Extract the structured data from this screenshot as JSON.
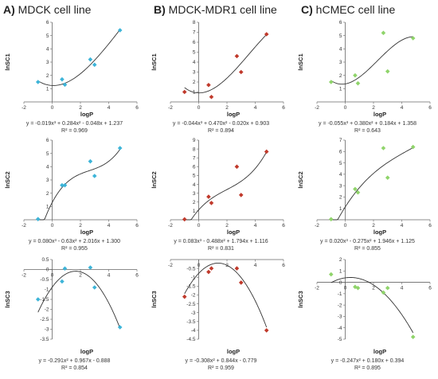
{
  "columns": [
    {
      "letter": "A)",
      "title": "MDCK cell line"
    },
    {
      "letter": "B)",
      "title": "MDCK-MDR1 cell line"
    },
    {
      "letter": "C)",
      "title": "hCMEC cell line"
    }
  ],
  "colors": {
    "MDCK": "#3cb4d8",
    "MDCK-MDR1": "#c0392b",
    "hCMEC": "#8fd46a",
    "curve": "#333333",
    "axis": "#666666"
  },
  "chart_data": [
    {
      "type": "scatter",
      "panel": "MDCK-lnSC1",
      "xlabel": "logP",
      "ylabel": "lnSC1",
      "xlim": [
        -2,
        6
      ],
      "xticks": [
        -2,
        0,
        2,
        4,
        6
      ],
      "ylim": [
        0,
        6
      ],
      "yticks": [
        1,
        2,
        3,
        4,
        5,
        6
      ],
      "x_axis_at": 0,
      "points": [
        [
          -1,
          1.5
        ],
        [
          0.7,
          1.7
        ],
        [
          0.9,
          1.3
        ],
        [
          2.7,
          3.2
        ],
        [
          3.0,
          2.8
        ],
        [
          4.8,
          5.4
        ]
      ],
      "coef": [
        -0.019,
        0.284,
        -0.048,
        1.237
      ],
      "equation": "y = -0.019x³ + 0.284x² - 0.048x + 1.237",
      "r2": "R² = 0.969"
    },
    {
      "type": "scatter",
      "panel": "MDCK-MDR1-lnSC1",
      "xlabel": "logP",
      "ylabel": "lnSC1",
      "xlim": [
        -2,
        6
      ],
      "xticks": [
        -2,
        0,
        2,
        4,
        6
      ],
      "ylim": [
        0,
        8
      ],
      "yticks": [
        1,
        2,
        3,
        4,
        5,
        6,
        7,
        8
      ],
      "x_axis_at": 0,
      "points": [
        [
          -1,
          1.0
        ],
        [
          0.7,
          1.7
        ],
        [
          0.9,
          0.5
        ],
        [
          2.7,
          4.6
        ],
        [
          3.0,
          3.0
        ],
        [
          4.8,
          6.8
        ]
      ],
      "coef": [
        -0.044,
        0.47,
        -0.02,
        0.903
      ],
      "equation": "y = -0.044x³ + 0.470x² - 0.020x + 0.903",
      "r2": "R² = 0.894"
    },
    {
      "type": "scatter",
      "panel": "hCMEC-lnSC1",
      "xlabel": "logP",
      "ylabel": "lnSC1",
      "xlim": [
        -2,
        6
      ],
      "xticks": [
        -2,
        0,
        2,
        4,
        6
      ],
      "ylim": [
        0,
        6
      ],
      "yticks": [
        1,
        2,
        3,
        4,
        5,
        6
      ],
      "x_axis_at": 0,
      "points": [
        [
          -1,
          1.5
        ],
        [
          0.7,
          2.0
        ],
        [
          0.9,
          1.4
        ],
        [
          2.7,
          5.2
        ],
        [
          3.0,
          2.3
        ],
        [
          4.8,
          4.8
        ]
      ],
      "coef": [
        -0.055,
        0.38,
        0.184,
        1.358
      ],
      "equation": "y = -0.055x³ + 0.380x² + 0.184x + 1.358",
      "r2": "R² = 0.643"
    },
    {
      "type": "scatter",
      "panel": "MDCK-lnSC2",
      "xlabel": "logP",
      "ylabel": "lnSC2",
      "xlim": [
        -2,
        6
      ],
      "xticks": [
        -2,
        0,
        2,
        4,
        6
      ],
      "ylim": [
        0,
        6
      ],
      "yticks": [
        1,
        2,
        3,
        4,
        5,
        6
      ],
      "x_axis_at": 0,
      "points": [
        [
          -1,
          0.05
        ],
        [
          0.7,
          2.6
        ],
        [
          0.9,
          2.6
        ],
        [
          2.7,
          4.4
        ],
        [
          3.0,
          3.3
        ],
        [
          4.8,
          5.4
        ]
      ],
      "coef": [
        0.08,
        -0.63,
        2.016,
        1.3
      ],
      "equation": "y = 0.080x³ - 0.63x² + 2.016x + 1.300",
      "r2": "R² = 0.955"
    },
    {
      "type": "scatter",
      "panel": "MDCK-MDR1-lnSC2",
      "xlabel": "logP",
      "ylabel": "lnSC2",
      "xlim": [
        -2,
        6
      ],
      "xticks": [
        -2,
        0,
        2,
        4,
        6
      ],
      "ylim": [
        0,
        9
      ],
      "yticks": [
        1,
        2,
        3,
        4,
        5,
        6,
        7,
        8,
        9
      ],
      "x_axis_at": 0,
      "points": [
        [
          -1,
          0.05
        ],
        [
          0.7,
          2.6
        ],
        [
          0.9,
          1.9
        ],
        [
          2.7,
          6.0
        ],
        [
          3.0,
          2.8
        ],
        [
          4.8,
          7.7
        ]
      ],
      "coef": [
        0.083,
        -0.488,
        1.794,
        1.116
      ],
      "equation": "y = 0.083x³ - 0.488x² + 1.794x + 1.116",
      "r2": "R² = 0.831"
    },
    {
      "type": "scatter",
      "panel": "hCMEC-lnSC2",
      "xlabel": "logP",
      "ylabel": "lnSC2",
      "xlim": [
        -2,
        6
      ],
      "xticks": [
        -2,
        0,
        2,
        4,
        6
      ],
      "ylim": [
        0,
        7
      ],
      "yticks": [
        1,
        2,
        3,
        4,
        5,
        6,
        7
      ],
      "x_axis_at": 0,
      "points": [
        [
          -1,
          0.05
        ],
        [
          0.7,
          2.7
        ],
        [
          0.9,
          2.4
        ],
        [
          2.7,
          6.3
        ],
        [
          3.0,
          3.7
        ],
        [
          4.8,
          6.4
        ]
      ],
      "coef": [
        0.02,
        -0.275,
        1.946,
        1.125
      ],
      "equation": "y = 0.020x³ - 0.275x² + 1.946x + 1.125",
      "r2": "R² = 0.855"
    },
    {
      "type": "scatter",
      "panel": "MDCK-lnSC3",
      "xlabel": "logP",
      "ylabel": "lnSC3",
      "xlim": [
        -2,
        6
      ],
      "xticks": [
        -2,
        0,
        2,
        4,
        6
      ],
      "ylim": [
        -3.5,
        0.5
      ],
      "yticks": [
        0.5,
        0,
        -0.5,
        -1,
        -1.5,
        -2,
        -2.5,
        -3,
        -3.5
      ],
      "x_axis_at": 0,
      "points": [
        [
          -1,
          -1.5
        ],
        [
          0.7,
          -0.6
        ],
        [
          0.9,
          0.05
        ],
        [
          2.7,
          0.1
        ],
        [
          3.0,
          -0.9
        ],
        [
          4.8,
          -2.9
        ]
      ],
      "coef": [
        0,
        -0.291,
        0.967,
        -0.888
      ],
      "equation": "y = -0.291x² + 0.967x - 0.888",
      "r2": "R² = 0.854"
    },
    {
      "type": "scatter",
      "panel": "MDCK-MDR1-lnSC3",
      "xlabel": "logP",
      "ylabel": "lnSC3",
      "xlim": [
        -2,
        6
      ],
      "xticks": [
        -2,
        0,
        2,
        4,
        6
      ],
      "ylim": [
        -4.5,
        0
      ],
      "yticks": [
        -0.5,
        -1,
        -1.5,
        -2,
        -2.5,
        -3,
        -3.5,
        -4,
        -4.5
      ],
      "x_axis_at": 0,
      "points": [
        [
          -1,
          -2.1
        ],
        [
          0.7,
          -0.7
        ],
        [
          0.9,
          -0.5
        ],
        [
          2.7,
          -0.5
        ],
        [
          3.0,
          -1.3
        ],
        [
          4.8,
          -4.0
        ]
      ],
      "coef": [
        0,
        -0.308,
        0.844,
        -0.779
      ],
      "equation": "y = -0.308x² + 0.844x - 0.779",
      "r2": "R² = 0.959"
    },
    {
      "type": "scatter",
      "panel": "hCMEC-lnSC3",
      "xlabel": "logP",
      "ylabel": "lnSC3",
      "xlim": [
        -2,
        6
      ],
      "xticks": [
        -2,
        0,
        2,
        4,
        6
      ],
      "ylim": [
        -5,
        2
      ],
      "yticks": [
        2,
        1,
        0,
        -1,
        -2,
        -3,
        -4,
        -5
      ],
      "x_axis_at": 0,
      "points": [
        [
          -1,
          0.7
        ],
        [
          0.7,
          -0.4
        ],
        [
          0.9,
          -0.5
        ],
        [
          2.7,
          -0.9
        ],
        [
          3.0,
          -0.5
        ],
        [
          4.8,
          -4.8
        ]
      ],
      "coef": [
        0,
        -0.247,
        0.18,
        0.394
      ],
      "equation": "y = -0.247x² + 0.180x + 0.394",
      "r2": "R² = 0.895"
    }
  ]
}
